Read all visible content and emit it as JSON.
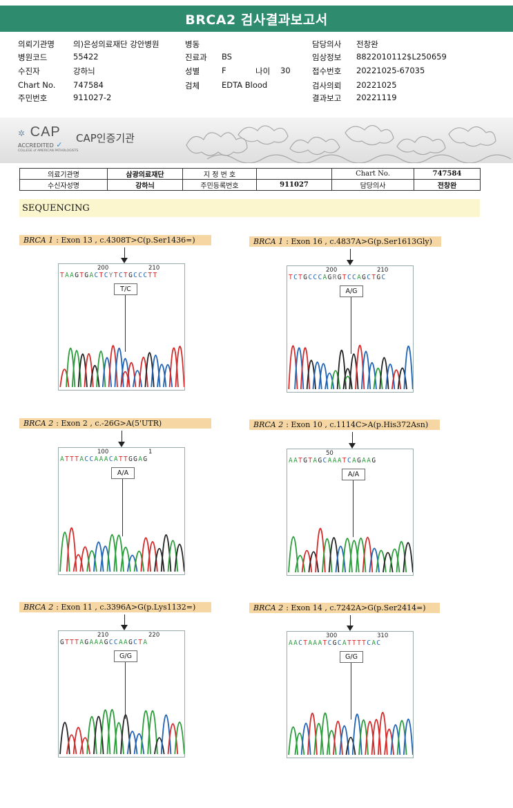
{
  "report_title": "BRCA2 검사결과보고서",
  "header": {
    "left": [
      {
        "k": "의뢰기관명",
        "v": "의)은성의료재단 강안병원"
      },
      {
        "k": "병원코드",
        "v": "55422"
      },
      {
        "k": "수진자",
        "v": "강하늬"
      },
      {
        "k": "Chart No.",
        "v": "747584"
      },
      {
        "k": "주민번호",
        "v": "911027-2"
      }
    ],
    "middle": [
      {
        "k": "병동",
        "v": ""
      },
      {
        "k": "진료과",
        "v": "BS"
      },
      {
        "k": "성별",
        "v": "F"
      },
      {
        "k": "검체",
        "v": "EDTA Blood"
      }
    ],
    "age": {
      "k": "나이",
      "v": "30"
    },
    "right": [
      {
        "k": "담당의사",
        "v": "전창완"
      },
      {
        "k": "임상정보",
        "v": "8822010112$L250659"
      },
      {
        "k": "접수번호",
        "v": "20221025-67035"
      },
      {
        "k": "검사의뢰",
        "v": "20221025"
      },
      {
        "k": "결과보고",
        "v": "20221119"
      }
    ]
  },
  "cap": {
    "logo_word": "CAP",
    "accredited": "ACCREDITED",
    "college": "COLLEGE of AMERICAN PATHOLOGISTS",
    "cert_text": "CAP인증기관"
  },
  "sub_table": {
    "r1": [
      "의료기관명",
      "삼광의료재단",
      "지 정 번 호",
      "",
      "Chart No.",
      "747584"
    ],
    "r2": [
      "수신자성명",
      "강하늬",
      "주민등록번호",
      "911027",
      "담당의사",
      "전창완"
    ]
  },
  "section": "SEQUENCING",
  "panels": [
    {
      "gene": "BRCA 1",
      "desc": ": Exon 13 , c.4308T>C(p.Ser1436=)",
      "pos1": "200",
      "pos2": "210",
      "bases": "TAAGTGACTCYTCTGCCCTT",
      "genotype": "T/C"
    },
    {
      "gene": "BRCA 1",
      "desc": ": Exon 16 , c.4837A>G(p.Ser1613Gly)",
      "pos1": "200",
      "pos2": "210",
      "bases": "TCTGCCCAGRGTCCAGCTGC",
      "genotype": "A/G"
    },
    {
      "gene": "BRCA 2",
      "desc": ": Exon 2 , c.-26G>A(5'UTR)",
      "pos1": "100",
      "pos2": "1",
      "bases": "ATTTACCAAACATTGGAG",
      "genotype": "A/A"
    },
    {
      "gene": "BRCA 2",
      "desc": ": Exon 10 , c.1114C>A(p.His372Asn)",
      "pos1": "50",
      "pos2": "",
      "bases": "AATGTAGCAAATCAGAAG",
      "genotype": "A/A"
    },
    {
      "gene": "BRCA 2",
      "desc": ": Exon 11 , c.3396A>G(p.Lys1132=)",
      "pos1": "210",
      "pos2": "220",
      "bases": "GTTTAGAAAGCCAAGCTA",
      "genotype": "G/G"
    },
    {
      "gene": "BRCA 2",
      "desc": ": Exon 14 , c.7242A>G(p.Ser2414=)",
      "pos1": "300",
      "pos2": "310",
      "bases": "AACTAAATCGCATTTTCAC",
      "genotype": "G/G"
    }
  ],
  "colors": {
    "A": "#2a9d3a",
    "C": "#1f63b5",
    "G": "#222222",
    "T": "#d42a2a",
    "title_bar": "#2e8b6e",
    "label_bg": "#f6d7a3"
  }
}
